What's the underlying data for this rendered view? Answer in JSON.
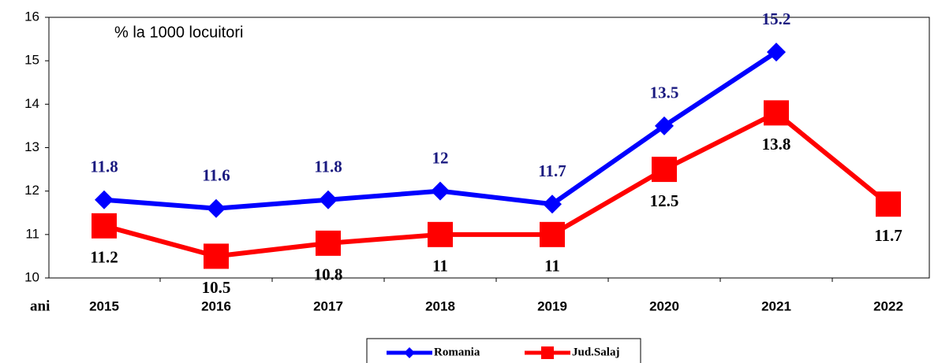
{
  "chart_data": {
    "type": "line",
    "annotation": "%  la 1000 locuitori",
    "x_label": "ani",
    "categories": [
      "2015",
      "2016",
      "2017",
      "2018",
      "2019",
      "2020",
      "2021",
      "2022"
    ],
    "series": [
      {
        "name": "Romania",
        "color": "#0000ff",
        "label_color": "#1a1a80",
        "values": [
          11.8,
          11.6,
          11.8,
          12,
          11.7,
          13.5,
          15.2,
          null
        ]
      },
      {
        "name": "Jud.Salaj",
        "color": "#ff0000",
        "label_color": "#000000",
        "values": [
          11.2,
          10.5,
          10.8,
          11,
          11,
          12.5,
          13.8,
          11.7
        ]
      }
    ],
    "ylim": [
      10,
      16
    ],
    "yticks": [
      10,
      11,
      12,
      13,
      14,
      15,
      16
    ],
    "grid": false,
    "legend": "bottom"
  }
}
